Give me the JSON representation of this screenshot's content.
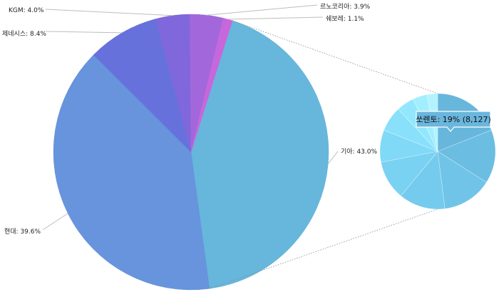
{
  "chart_data": {
    "type": "pie",
    "main_pie": {
      "slices": [
        {
          "label": "기아: 43.0%",
          "name": "기아",
          "value": 43.0,
          "color": "#67b6dc"
        },
        {
          "label": "현대: 39.6%",
          "name": "현대",
          "value": 39.6,
          "color": "#6794dc"
        },
        {
          "label": "제네시스: 8.4%",
          "name": "제네시스",
          "value": 8.4,
          "color": "#6771dc"
        },
        {
          "label": "KGM: 4.0%",
          "name": "KGM",
          "value": 4.0,
          "color": "#8067dc"
        },
        {
          "label": "르노코리아: 3.9%",
          "name": "르노코리아",
          "value": 3.9,
          "color": "#a367dc"
        },
        {
          "label": "쉐보레: 1.1%",
          "name": "쉐보레",
          "value": 1.1,
          "color": "#c767dc"
        }
      ]
    },
    "detail_pie": {
      "parent": "기아",
      "slices": [
        {
          "value": 19,
          "color": "#67b6dc"
        },
        {
          "value": 15,
          "color": "#6bbde2"
        },
        {
          "value": 14,
          "color": "#70c4e7"
        },
        {
          "value": 13,
          "color": "#75cbed"
        },
        {
          "value": 11,
          "color": "#7ad2f2"
        },
        {
          "value": 9,
          "color": "#80d9f7"
        },
        {
          "value": 7,
          "color": "#88e0fb"
        },
        {
          "value": 5,
          "color": "#93e7fd"
        },
        {
          "value": 4,
          "color": "#a3eefe"
        },
        {
          "value": 3,
          "color": "#b3f3ff"
        }
      ]
    },
    "tooltip": {
      "text": "쏘렌토: 19% (8,127)",
      "slice_index": 0
    }
  }
}
